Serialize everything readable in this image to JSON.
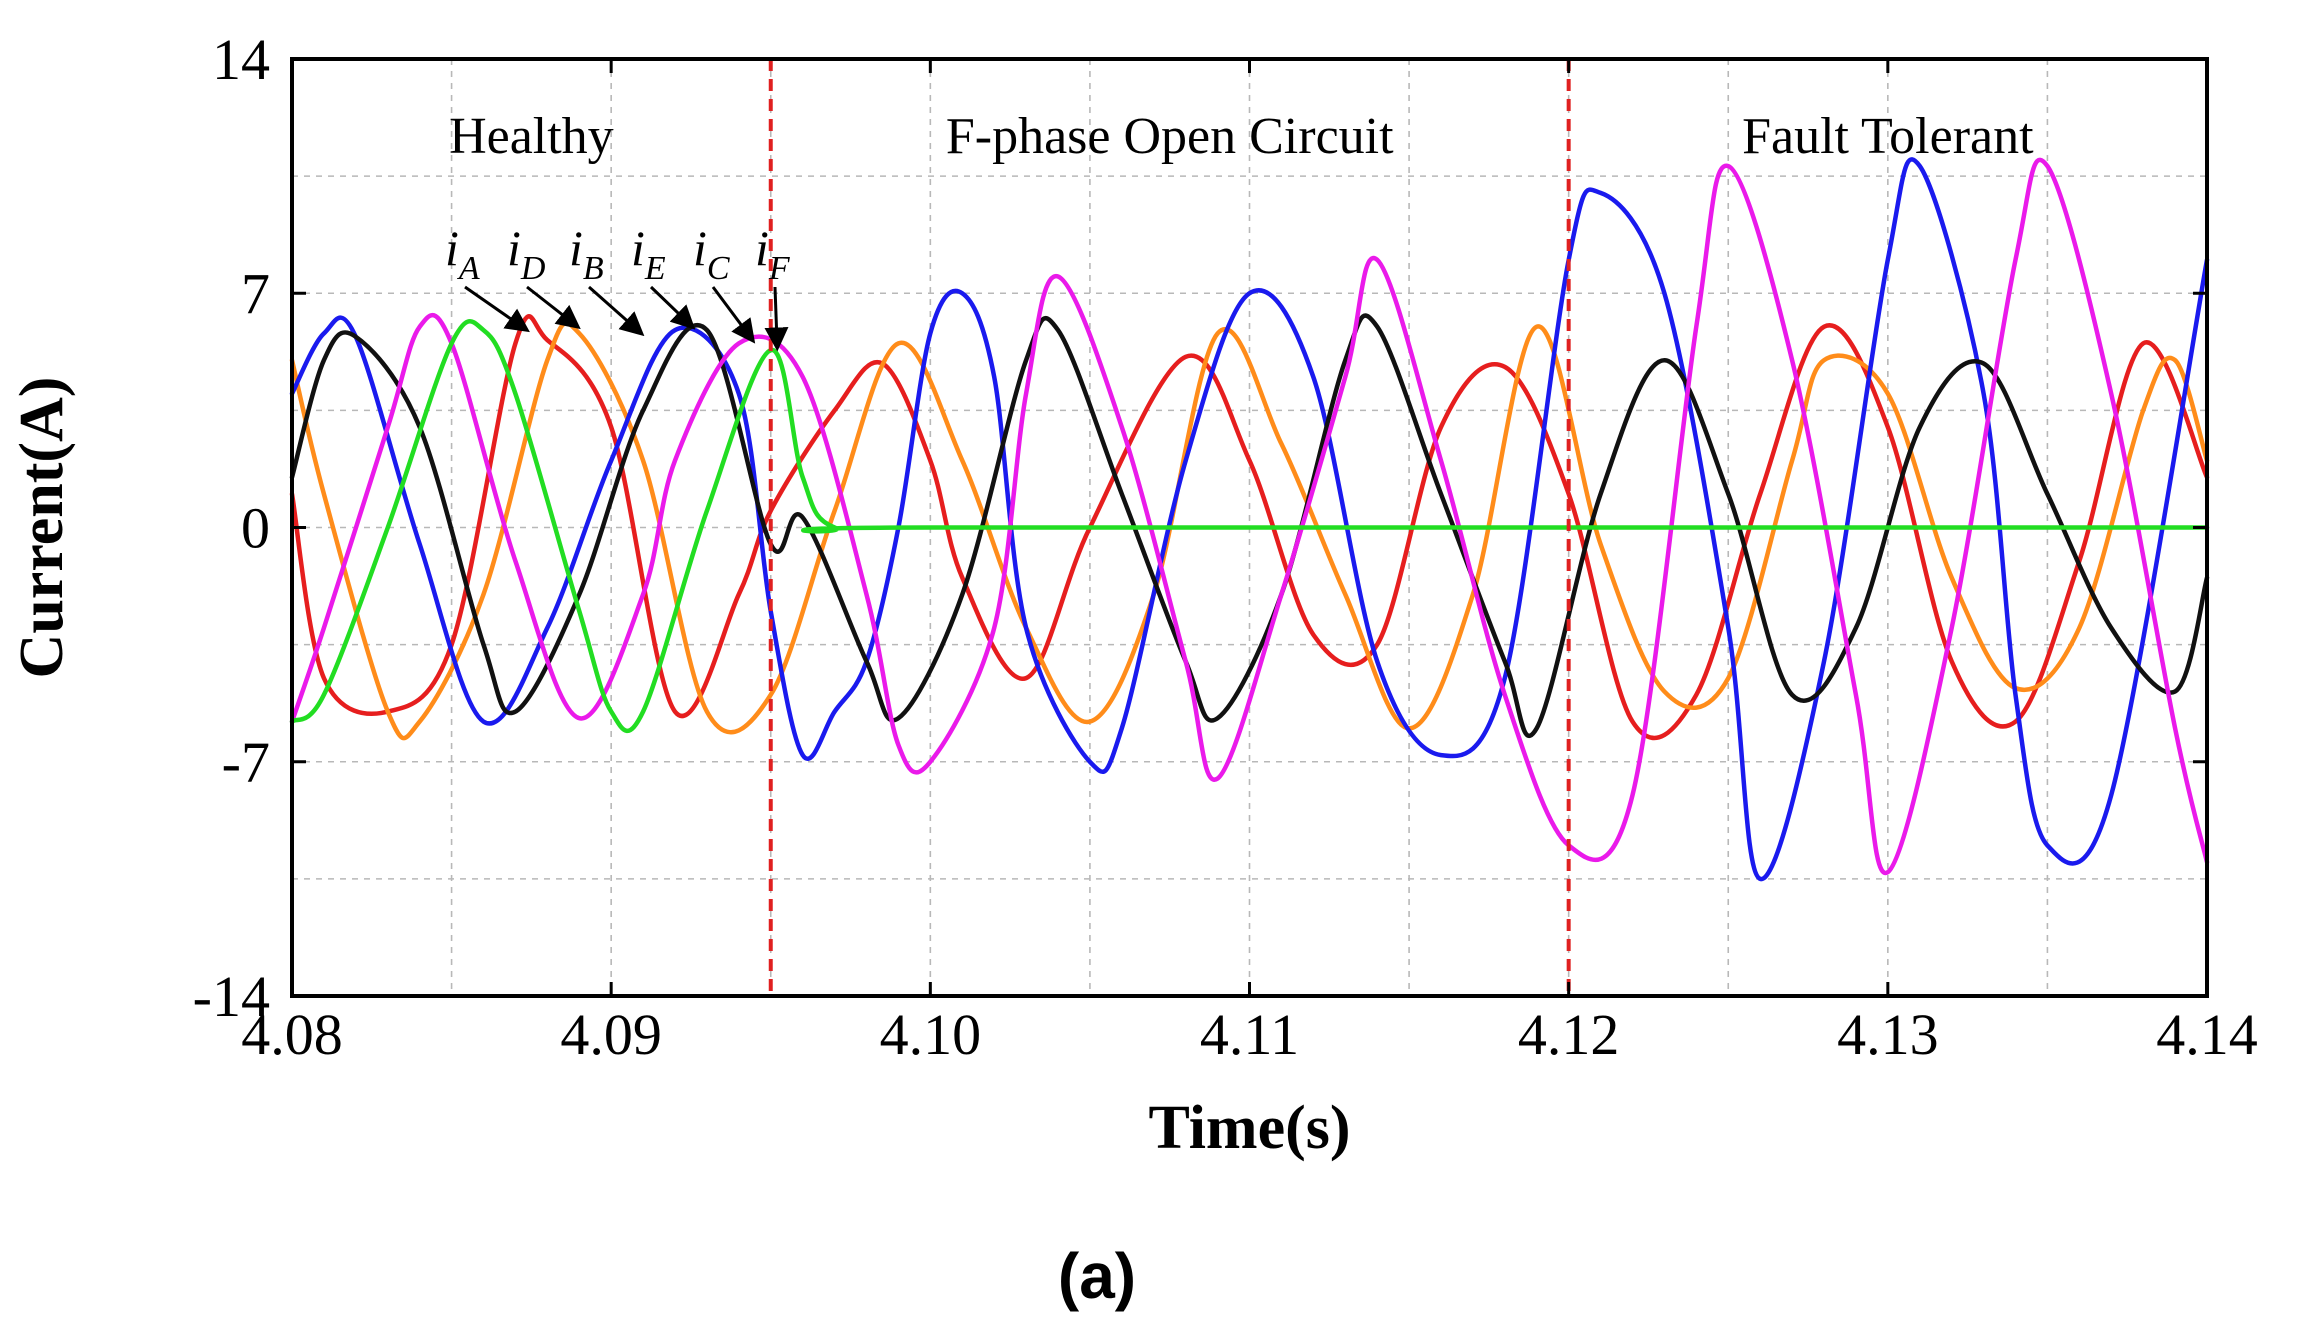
{
  "chart_data": {
    "type": "line",
    "title": "",
    "xlabel": "Time(s)",
    "ylabel": "Current(A)",
    "xlim": [
      4.08,
      4.14
    ],
    "ylim": [
      -14,
      14
    ],
    "x_ticks": [
      "4.08",
      "4.09",
      "4.10",
      "4.11",
      "4.12",
      "4.13",
      "4.14"
    ],
    "x_tick_values": [
      4.08,
      4.09,
      4.1,
      4.11,
      4.12,
      4.13,
      4.14
    ],
    "y_ticks": [
      "14",
      "7",
      "0",
      "-7",
      "-14"
    ],
    "y_tick_values": [
      14,
      7,
      0,
      -7,
      -14
    ],
    "y_grid_values": [
      14,
      10.5,
      7,
      3.5,
      0,
      -3.5,
      -7,
      -10.5,
      -14
    ],
    "x_grid_values": [
      4.085,
      4.09,
      4.095,
      4.1,
      4.105,
      4.11,
      4.115,
      4.12,
      4.125,
      4.13,
      4.135
    ],
    "grid": true,
    "fault_markers": [
      4.095,
      4.12
    ],
    "regions": [
      {
        "label": "Healthy",
        "center": 4.0875
      },
      {
        "label": "F-phase Open Circuit",
        "center": 4.1075
      },
      {
        "label": "Fault Tolerant",
        "center": 4.13
      }
    ],
    "legend": [
      {
        "base": "i",
        "sub": "A"
      },
      {
        "base": "i",
        "sub": "D"
      },
      {
        "base": "i",
        "sub": "B"
      },
      {
        "base": "i",
        "sub": "E"
      },
      {
        "base": "i",
        "sub": "C"
      },
      {
        "base": "i",
        "sub": "F"
      }
    ],
    "legend_arrow_targets": [
      {
        "x": 4.0873,
        "y": 5.7
      },
      {
        "x": 4.0889,
        "y": 5.8
      },
      {
        "x": 4.0909,
        "y": 5.6
      },
      {
        "x": 4.0925,
        "y": 5.8
      },
      {
        "x": 4.0944,
        "y": 5.4
      },
      {
        "x": 4.0952,
        "y": 5.2
      }
    ],
    "series": [
      {
        "name": "iA",
        "color": "#e61e1e",
        "points": [
          [
            4.08,
            1.0
          ],
          [
            4.081,
            -4.5
          ],
          [
            4.083,
            -5.5
          ],
          [
            4.085,
            -3.5
          ],
          [
            4.087,
            5.5
          ],
          [
            4.088,
            5.6
          ],
          [
            4.09,
            3.0
          ],
          [
            4.092,
            -5.5
          ],
          [
            4.094,
            -2.0
          ],
          [
            4.095,
            0.5
          ],
          [
            4.097,
            3.5
          ],
          [
            4.0985,
            4.9
          ],
          [
            4.1,
            2.0
          ],
          [
            4.101,
            -1.5
          ],
          [
            4.103,
            -4.5
          ],
          [
            4.105,
            0.0
          ],
          [
            4.108,
            5.1
          ],
          [
            4.11,
            2.0
          ],
          [
            4.112,
            -3.2
          ],
          [
            4.114,
            -3.5
          ],
          [
            4.116,
            3.0
          ],
          [
            4.118,
            4.8
          ],
          [
            4.12,
            1.0
          ],
          [
            4.122,
            -5.8
          ],
          [
            4.124,
            -5.0
          ],
          [
            4.126,
            1.0
          ],
          [
            4.128,
            6.0
          ],
          [
            4.13,
            3.0
          ],
          [
            4.132,
            -4.0
          ],
          [
            4.134,
            -5.8
          ],
          [
            4.136,
            -1.0
          ],
          [
            4.138,
            5.5
          ],
          [
            4.14,
            1.5
          ]
        ]
      },
      {
        "name": "iD",
        "color": "#ff8c1a",
        "points": [
          [
            4.08,
            5.0
          ],
          [
            4.081,
            1.0
          ],
          [
            4.083,
            -5.5
          ],
          [
            4.084,
            -5.8
          ],
          [
            4.086,
            -2.0
          ],
          [
            4.088,
            5.0
          ],
          [
            4.089,
            5.8
          ],
          [
            4.091,
            2.0
          ],
          [
            4.093,
            -5.5
          ],
          [
            4.095,
            -5.0
          ],
          [
            4.097,
            0.5
          ],
          [
            4.099,
            5.5
          ],
          [
            4.101,
            2.0
          ],
          [
            4.103,
            -3.0
          ],
          [
            4.105,
            -5.8
          ],
          [
            4.107,
            -2.0
          ],
          [
            4.109,
            5.8
          ],
          [
            4.111,
            2.5
          ],
          [
            4.113,
            -2.0
          ],
          [
            4.115,
            -6.0
          ],
          [
            4.117,
            -2.0
          ],
          [
            4.119,
            6.0
          ],
          [
            4.121,
            -0.5
          ],
          [
            4.123,
            -4.9
          ],
          [
            4.125,
            -4.5
          ],
          [
            4.127,
            2.0
          ],
          [
            4.128,
            5.0
          ],
          [
            4.13,
            4.0
          ],
          [
            4.132,
            -1.5
          ],
          [
            4.134,
            -4.8
          ],
          [
            4.136,
            -3.0
          ],
          [
            4.138,
            3.5
          ],
          [
            4.139,
            5.0
          ],
          [
            4.14,
            2.0
          ]
        ]
      },
      {
        "name": "iB",
        "color": "#1a1aee",
        "points": [
          [
            4.08,
            4.0
          ],
          [
            4.081,
            5.8
          ],
          [
            4.082,
            5.7
          ],
          [
            4.084,
            -0.5
          ],
          [
            4.086,
            -5.8
          ],
          [
            4.088,
            -3.0
          ],
          [
            4.09,
            2.0
          ],
          [
            4.092,
            5.9
          ],
          [
            4.094,
            4.0
          ],
          [
            4.095,
            -2.5
          ],
          [
            4.096,
            -6.8
          ],
          [
            4.097,
            -5.5
          ],
          [
            4.098,
            -4.0
          ],
          [
            4.099,
            0.0
          ],
          [
            4.1,
            5.8
          ],
          [
            4.101,
            7.0
          ],
          [
            4.102,
            4.5
          ],
          [
            4.103,
            -3.0
          ],
          [
            4.105,
            -7.0
          ],
          [
            4.106,
            -6.0
          ],
          [
            4.108,
            2.0
          ],
          [
            4.11,
            7.0
          ],
          [
            4.112,
            4.5
          ],
          [
            4.114,
            -4.0
          ],
          [
            4.116,
            -6.8
          ],
          [
            4.118,
            -4.5
          ],
          [
            4.12,
            8.0
          ],
          [
            4.121,
            10.0
          ],
          [
            4.123,
            7.0
          ],
          [
            4.125,
            -3.0
          ],
          [
            4.126,
            -10.5
          ],
          [
            4.128,
            -4.0
          ],
          [
            4.13,
            8.0
          ],
          [
            4.131,
            10.8
          ],
          [
            4.133,
            4.0
          ],
          [
            4.134,
            -5.0
          ],
          [
            4.135,
            -9.5
          ],
          [
            4.137,
            -8.0
          ],
          [
            4.14,
            8.0
          ]
        ]
      },
      {
        "name": "iE",
        "color": "#111111",
        "points": [
          [
            4.08,
            1.5
          ],
          [
            4.081,
            5.0
          ],
          [
            4.082,
            5.7
          ],
          [
            4.084,
            3.0
          ],
          [
            4.086,
            -3.5
          ],
          [
            4.087,
            -5.5
          ],
          [
            4.089,
            -2.0
          ],
          [
            4.091,
            3.5
          ],
          [
            4.093,
            5.9
          ],
          [
            4.095,
            -0.5
          ],
          [
            4.096,
            0.3
          ],
          [
            4.098,
            -4.0
          ],
          [
            4.099,
            -5.7
          ],
          [
            4.101,
            -2.0
          ],
          [
            4.103,
            5.0
          ],
          [
            4.104,
            5.9
          ],
          [
            4.106,
            1.0
          ],
          [
            4.108,
            -4.0
          ],
          [
            4.109,
            -5.7
          ],
          [
            4.111,
            -2.0
          ],
          [
            4.113,
            5.0
          ],
          [
            4.114,
            6.0
          ],
          [
            4.116,
            1.0
          ],
          [
            4.118,
            -4.0
          ],
          [
            4.119,
            -6.0
          ],
          [
            4.121,
            1.0
          ],
          [
            4.123,
            5.0
          ],
          [
            4.125,
            1.0
          ],
          [
            4.127,
            -5.0
          ],
          [
            4.129,
            -3.0
          ],
          [
            4.131,
            3.0
          ],
          [
            4.133,
            4.9
          ],
          [
            4.135,
            1.0
          ],
          [
            4.137,
            -3.0
          ],
          [
            4.139,
            -4.9
          ],
          [
            4.14,
            -1.5
          ]
        ]
      },
      {
        "name": "iC",
        "color": "#ea1aea",
        "points": [
          [
            4.08,
            -5.8
          ],
          [
            4.081,
            -3.0
          ],
          [
            4.083,
            3.0
          ],
          [
            4.084,
            6.0
          ],
          [
            4.085,
            5.5
          ],
          [
            4.087,
            -1.0
          ],
          [
            4.089,
            -5.7
          ],
          [
            4.091,
            -2.0
          ],
          [
            4.092,
            2.0
          ],
          [
            4.094,
            5.5
          ],
          [
            4.096,
            4.5
          ],
          [
            4.098,
            -2.0
          ],
          [
            4.099,
            -6.5
          ],
          [
            4.1,
            -7.0
          ],
          [
            4.102,
            -3.0
          ],
          [
            4.103,
            4.0
          ],
          [
            4.104,
            7.5
          ],
          [
            4.106,
            3.0
          ],
          [
            4.108,
            -4.0
          ],
          [
            4.109,
            -7.5
          ],
          [
            4.111,
            -2.0
          ],
          [
            4.113,
            4.5
          ],
          [
            4.114,
            8.0
          ],
          [
            4.116,
            2.0
          ],
          [
            4.118,
            -5.0
          ],
          [
            4.12,
            -9.5
          ],
          [
            4.122,
            -8.0
          ],
          [
            4.124,
            6.0
          ],
          [
            4.125,
            10.8
          ],
          [
            4.127,
            5.0
          ],
          [
            4.129,
            -5.0
          ],
          [
            4.13,
            -10.3
          ],
          [
            4.132,
            -3.0
          ],
          [
            4.134,
            8.0
          ],
          [
            4.135,
            10.8
          ],
          [
            4.137,
            4.0
          ],
          [
            4.139,
            -6.0
          ],
          [
            4.14,
            -10.0
          ]
        ]
      },
      {
        "name": "iF",
        "color": "#22dd22",
        "points": [
          [
            4.08,
            -5.8
          ],
          [
            4.081,
            -5.0
          ],
          [
            4.083,
            0.0
          ],
          [
            4.085,
            5.5
          ],
          [
            4.086,
            5.9
          ],
          [
            4.087,
            4.0
          ],
          [
            4.089,
            -2.5
          ],
          [
            4.09,
            -5.5
          ],
          [
            4.091,
            -5.5
          ],
          [
            4.093,
            0.5
          ],
          [
            4.095,
            5.3
          ],
          [
            4.096,
            1.5
          ],
          [
            4.097,
            0.0
          ],
          [
            4.1,
            0.0
          ],
          [
            4.14,
            0.0
          ]
        ]
      }
    ]
  },
  "panel_label": "(a)"
}
